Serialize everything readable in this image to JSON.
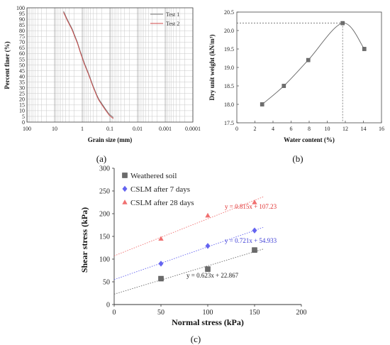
{
  "chart_data": [
    {
      "type": "line",
      "caption": "(a)",
      "xlabel": "Grain size (mm)",
      "ylabel": "Percent  finer (%)",
      "x_scale": "log",
      "x_reversed": true,
      "xlim": [
        100,
        0.0001
      ],
      "ylim": [
        0,
        100
      ],
      "x_ticks": [
        "100",
        "10",
        "1",
        "0.1",
        "0.01",
        "0.001",
        "0.0001"
      ],
      "y_ticks": [
        "0",
        "5",
        "10",
        "15",
        "20",
        "25",
        "30",
        "35",
        "40",
        "45",
        "50",
        "55",
        "60",
        "65",
        "70",
        "75",
        "80",
        "85",
        "90",
        "95",
        "100"
      ],
      "legend_position": "top-right",
      "grid": true,
      "series": [
        {
          "name": "Test 1",
          "color": "#777777",
          "x": [
            4.75,
            3.5,
            2.36,
            1.5,
            1.18,
            0.85,
            0.6,
            0.425,
            0.3,
            0.25,
            0.15,
            0.106,
            0.075
          ],
          "y": [
            97,
            90,
            82,
            70,
            62,
            52,
            43,
            33,
            24,
            20,
            12,
            7,
            4
          ]
        },
        {
          "name": "Test 2",
          "color": "#d04848",
          "x": [
            4.75,
            3.5,
            2.36,
            1.5,
            1.18,
            0.85,
            0.6,
            0.425,
            0.3,
            0.25,
            0.15,
            0.106,
            0.075
          ],
          "y": [
            96,
            89,
            81,
            69,
            61,
            51,
            42,
            32,
            23,
            19,
            11,
            6,
            3
          ]
        }
      ]
    },
    {
      "type": "line",
      "caption": "(b)",
      "xlabel": "Water content (%)",
      "ylabel": "Dry unit weight (kN/m³)",
      "xlim": [
        0,
        16
      ],
      "ylim": [
        17.5,
        20.5
      ],
      "x_ticks": [
        "0",
        "2",
        "4",
        "6",
        "8",
        "10",
        "12",
        "14",
        "16"
      ],
      "y_ticks": [
        "17.5",
        "18.0",
        "18.5",
        "19.0",
        "19.5",
        "20.0",
        "20.5"
      ],
      "grid": false,
      "optimum": {
        "x": 11.7,
        "y": 20.2
      },
      "series": [
        {
          "name": "",
          "color": "#666666",
          "x": [
            2.8,
            5.2,
            7.9,
            11.7,
            14.1
          ],
          "y": [
            18.0,
            18.5,
            19.2,
            20.2,
            19.5
          ]
        }
      ]
    },
    {
      "type": "scatter",
      "caption": "(c)",
      "xlabel": "Normal stress (kPa)",
      "ylabel": "Shear stress (kPa)",
      "xlim": [
        0,
        200
      ],
      "ylim": [
        0,
        300
      ],
      "x_ticks": [
        "0",
        "50",
        "100",
        "150",
        "200"
      ],
      "y_ticks": [
        "0",
        "50",
        "100",
        "150",
        "200",
        "250",
        "300"
      ],
      "legend_position": "top-left",
      "grid": false,
      "series": [
        {
          "name": "Weathered soil",
          "marker": "square",
          "color": "#6b6b6b",
          "x": [
            50,
            100,
            150
          ],
          "y": [
            57,
            78,
            120
          ],
          "trend": {
            "slope": 0.623,
            "intercept": 22.867
          },
          "equation": "y = 0.623x + 22.867",
          "eq_color": "#222222"
        },
        {
          "name": "CSLM after 7 days",
          "marker": "diamond",
          "color": "#6464f0",
          "x": [
            50,
            100,
            150
          ],
          "y": [
            90,
            129,
            163
          ],
          "trend": {
            "slope": 0.721,
            "intercept": 54.933
          },
          "equation": "y = 0.721x + 54.933",
          "eq_color": "#3b3bd6"
        },
        {
          "name": "CSLM after 28 days",
          "marker": "triangle",
          "color": "#f07070",
          "x": [
            50,
            100,
            150
          ],
          "y": [
            145,
            196,
            225
          ],
          "trend": {
            "slope": 0.815,
            "intercept": 107.23
          },
          "equation": "y = 0.815x + 107.23",
          "eq_color": "#e03030"
        }
      ]
    }
  ]
}
